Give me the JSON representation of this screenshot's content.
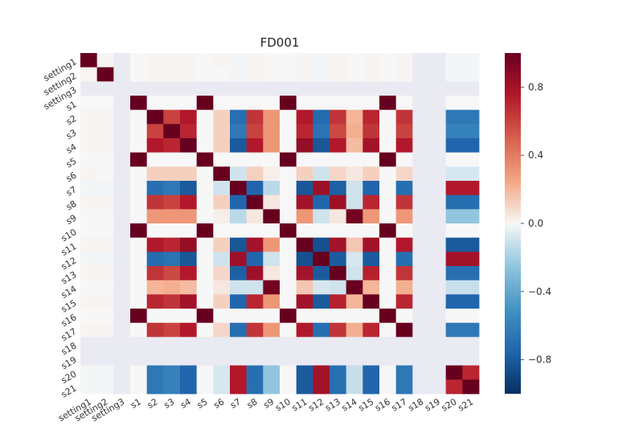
{
  "chart_data": {
    "type": "heatmap",
    "title": "FD001",
    "labels": [
      "setting1",
      "setting2",
      "setting3",
      "s1",
      "s2",
      "s3",
      "s4",
      "s5",
      "s6",
      "s7",
      "s8",
      "s9",
      "s10",
      "s11",
      "s12",
      "s13",
      "s14",
      "s15",
      "s16",
      "s17",
      "s18",
      "s19",
      "s20",
      "s21"
    ],
    "values": [
      [
        1.0,
        0.01,
        null,
        0.0,
        0.01,
        0.01,
        0.01,
        0.0,
        0.01,
        -0.01,
        0.01,
        0.0,
        0.0,
        0.01,
        -0.01,
        0.01,
        0.0,
        0.01,
        0.0,
        0.01,
        null,
        null,
        -0.01,
        -0.01
      ],
      [
        0.01,
        1.0,
        null,
        0.0,
        0.01,
        0.01,
        0.01,
        0.0,
        0.0,
        -0.01,
        0.01,
        0.0,
        0.0,
        0.01,
        -0.01,
        0.01,
        0.0,
        0.01,
        0.0,
        0.01,
        null,
        null,
        -0.01,
        -0.01
      ],
      [
        null,
        null,
        null,
        null,
        null,
        null,
        null,
        null,
        null,
        null,
        null,
        null,
        null,
        null,
        null,
        null,
        null,
        null,
        null,
        null,
        null,
        null,
        null,
        null
      ],
      [
        0.0,
        0.0,
        null,
        1.0,
        0.0,
        0.0,
        0.0,
        1.0,
        0.0,
        0.0,
        0.0,
        0.0,
        1.0,
        0.0,
        0.0,
        0.0,
        0.0,
        0.0,
        1.0,
        0.0,
        null,
        null,
        0.0,
        0.0
      ],
      [
        0.01,
        0.01,
        null,
        0.0,
        1.0,
        0.6,
        0.75,
        0.0,
        0.12,
        -0.7,
        0.65,
        0.3,
        0.0,
        0.75,
        -0.72,
        0.65,
        0.2,
        0.7,
        0.0,
        0.65,
        null,
        null,
        -0.65,
        -0.65
      ],
      [
        0.01,
        0.01,
        null,
        0.0,
        0.6,
        1.0,
        0.7,
        0.0,
        0.12,
        -0.65,
        0.6,
        0.3,
        0.0,
        0.7,
        -0.68,
        0.58,
        0.22,
        0.65,
        0.0,
        0.6,
        null,
        null,
        -0.6,
        -0.6
      ],
      [
        0.01,
        0.01,
        null,
        0.0,
        0.75,
        0.7,
        1.0,
        0.0,
        0.12,
        -0.8,
        0.75,
        0.3,
        0.0,
        0.85,
        -0.82,
        0.75,
        0.18,
        0.8,
        0.0,
        0.75,
        null,
        null,
        -0.75,
        -0.75
      ],
      [
        0.0,
        0.0,
        null,
        1.0,
        0.0,
        0.0,
        0.0,
        1.0,
        0.0,
        0.0,
        0.0,
        0.0,
        1.0,
        0.0,
        0.0,
        0.0,
        0.0,
        0.0,
        1.0,
        0.0,
        null,
        null,
        0.0,
        0.0
      ],
      [
        0.01,
        0.0,
        null,
        0.0,
        0.12,
        0.12,
        0.12,
        0.0,
        1.0,
        -0.1,
        0.12,
        0.03,
        0.0,
        0.12,
        -0.1,
        0.1,
        0.05,
        0.12,
        0.0,
        0.1,
        null,
        null,
        -0.08,
        -0.08
      ],
      [
        -0.01,
        -0.01,
        null,
        0.0,
        -0.7,
        -0.65,
        -0.8,
        0.0,
        -0.1,
        1.0,
        -0.75,
        -0.15,
        0.0,
        -0.82,
        0.82,
        -0.78,
        -0.1,
        -0.75,
        0.0,
        -0.7,
        null,
        null,
        0.75,
        0.75
      ],
      [
        0.01,
        0.01,
        null,
        0.0,
        0.65,
        0.6,
        0.75,
        0.0,
        0.12,
        -0.75,
        1.0,
        0.05,
        0.0,
        0.8,
        -0.75,
        0.82,
        -0.1,
        0.7,
        0.0,
        0.65,
        null,
        null,
        -0.7,
        -0.7
      ],
      [
        0.0,
        0.0,
        null,
        0.0,
        0.3,
        0.3,
        0.3,
        0.0,
        0.03,
        -0.15,
        0.05,
        1.0,
        0.0,
        0.3,
        -0.1,
        0.05,
        0.96,
        0.3,
        0.0,
        0.3,
        null,
        null,
        -0.25,
        -0.25
      ],
      [
        0.0,
        0.0,
        null,
        1.0,
        0.0,
        0.0,
        0.0,
        1.0,
        0.0,
        0.0,
        0.0,
        0.0,
        1.0,
        0.0,
        0.0,
        0.0,
        0.0,
        0.0,
        1.0,
        0.0,
        null,
        null,
        0.0,
        0.0
      ],
      [
        0.01,
        0.01,
        null,
        0.0,
        0.75,
        0.7,
        0.85,
        0.0,
        0.12,
        -0.82,
        0.8,
        0.3,
        0.0,
        1.0,
        -0.85,
        0.8,
        0.15,
        0.8,
        0.0,
        0.75,
        null,
        null,
        -0.8,
        -0.8
      ],
      [
        -0.01,
        -0.01,
        null,
        0.0,
        -0.72,
        -0.68,
        -0.82,
        0.0,
        -0.1,
        0.82,
        -0.75,
        -0.1,
        0.0,
        -0.85,
        1.0,
        -0.8,
        -0.08,
        -0.8,
        0.0,
        -0.7,
        null,
        null,
        0.8,
        0.8
      ],
      [
        0.01,
        0.01,
        null,
        0.0,
        0.65,
        0.58,
        0.75,
        0.0,
        0.1,
        -0.78,
        0.82,
        0.05,
        0.0,
        0.8,
        -0.8,
        1.0,
        -0.1,
        0.72,
        0.0,
        0.65,
        null,
        null,
        -0.7,
        -0.7
      ],
      [
        0.0,
        0.0,
        null,
        0.0,
        0.2,
        0.22,
        0.18,
        0.0,
        0.05,
        -0.1,
        -0.1,
        0.96,
        0.0,
        0.15,
        -0.08,
        -0.1,
        1.0,
        0.2,
        0.0,
        0.22,
        null,
        null,
        -0.12,
        -0.12
      ],
      [
        0.01,
        0.01,
        null,
        0.0,
        0.7,
        0.65,
        0.8,
        0.0,
        0.12,
        -0.75,
        0.7,
        0.3,
        0.0,
        0.8,
        -0.8,
        0.72,
        0.2,
        1.0,
        0.0,
        0.7,
        null,
        null,
        -0.75,
        -0.75
      ],
      [
        0.0,
        0.0,
        null,
        1.0,
        0.0,
        0.0,
        0.0,
        1.0,
        0.0,
        0.0,
        0.0,
        0.0,
        1.0,
        0.0,
        0.0,
        0.0,
        0.0,
        0.0,
        1.0,
        0.0,
        null,
        null,
        0.0,
        0.0
      ],
      [
        0.01,
        0.01,
        null,
        0.0,
        0.65,
        0.6,
        0.75,
        0.0,
        0.1,
        -0.7,
        0.65,
        0.3,
        0.0,
        0.75,
        -0.7,
        0.65,
        0.22,
        0.7,
        0.0,
        1.0,
        null,
        null,
        -0.65,
        -0.65
      ],
      [
        null,
        null,
        null,
        null,
        null,
        null,
        null,
        null,
        null,
        null,
        null,
        null,
        null,
        null,
        null,
        null,
        null,
        null,
        null,
        null,
        null,
        null,
        null,
        null
      ],
      [
        null,
        null,
        null,
        null,
        null,
        null,
        null,
        null,
        null,
        null,
        null,
        null,
        null,
        null,
        null,
        null,
        null,
        null,
        null,
        null,
        null,
        null,
        null,
        null
      ],
      [
        -0.01,
        -0.01,
        null,
        0.0,
        -0.65,
        -0.6,
        -0.75,
        0.0,
        -0.08,
        0.75,
        -0.7,
        -0.25,
        0.0,
        -0.8,
        0.8,
        -0.7,
        -0.12,
        -0.75,
        0.0,
        -0.65,
        null,
        null,
        1.0,
        0.7
      ],
      [
        -0.01,
        -0.01,
        null,
        0.0,
        -0.65,
        -0.6,
        -0.75,
        0.0,
        -0.08,
        0.75,
        -0.7,
        -0.25,
        0.0,
        -0.8,
        0.8,
        -0.7,
        -0.12,
        -0.75,
        0.0,
        -0.65,
        null,
        null,
        0.7,
        1.0
      ]
    ],
    "vmin": -1.0,
    "vmax": 1.0,
    "colormap": "RdBu_r",
    "missing_color": "#eaeaf2",
    "colorbar_ticks": [
      0.8,
      0.4,
      0.0,
      -0.4,
      -0.8
    ],
    "colorbar_tick_labels": [
      "0.8",
      "0.4",
      "0.0",
      "−0.4",
      "−0.8"
    ],
    "legend_position": "right"
  }
}
